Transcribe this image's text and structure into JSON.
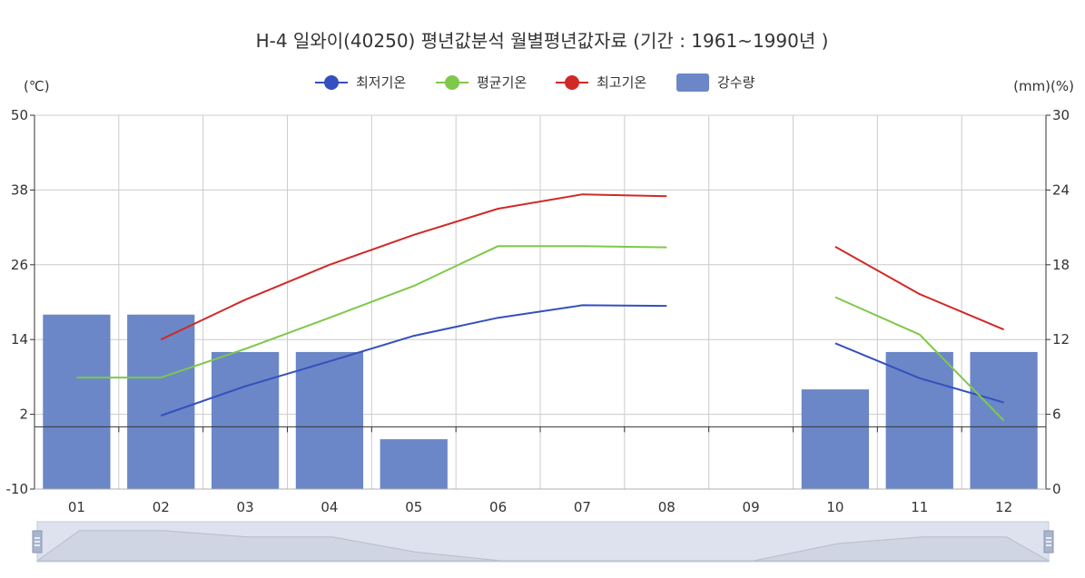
{
  "chart_data": {
    "type": "bar+line",
    "title": "H-4 일와이(40250) 평년값분석 월별평년값자료 (기간 : 1961~1990년 )",
    "left_unit": "(℃)",
    "right_unit": "(mm)(%)",
    "categories": [
      "01",
      "02",
      "03",
      "04",
      "05",
      "06",
      "07",
      "08",
      "09",
      "10",
      "11",
      "12"
    ],
    "left_axis": {
      "min": -10,
      "max": 50,
      "ticks": [
        -10,
        2,
        14,
        26,
        38,
        50
      ],
      "tick_labels": [
        "-10",
        "2",
        "14",
        "26",
        "38",
        "50"
      ]
    },
    "right_axis": {
      "min": 0,
      "max": 30,
      "ticks": [
        0,
        6,
        12,
        18,
        24,
        30
      ],
      "tick_labels": [
        "0",
        "6",
        "12",
        "18",
        "24",
        "30"
      ]
    },
    "grid": true,
    "legend_position": "top-center",
    "series": [
      {
        "name": "최저기온",
        "kind": "line",
        "axis": "left",
        "color": "#3450bf",
        "values": [
          null,
          1.8,
          6.5,
          10.5,
          14.6,
          17.5,
          19.5,
          19.4,
          null,
          13.4,
          7.8,
          3.9
        ]
      },
      {
        "name": "평균기온",
        "kind": "line",
        "axis": "left",
        "color": "#7ec84a",
        "values": [
          7.9,
          7.9,
          12.5,
          17.5,
          22.6,
          29.0,
          29.0,
          28.8,
          null,
          20.8,
          14.8,
          1.0
        ]
      },
      {
        "name": "최고기온",
        "kind": "line",
        "axis": "left",
        "color": "#cf2a27",
        "values": [
          null,
          14.0,
          20.4,
          26.0,
          30.8,
          35.0,
          37.3,
          37.0,
          null,
          28.9,
          21.3,
          15.6
        ]
      },
      {
        "name": "강수량",
        "kind": "bar",
        "axis": "right",
        "color": "#6b87c7",
        "values": [
          14,
          14,
          11,
          11,
          4,
          0,
          0,
          0,
          0,
          8,
          11,
          11
        ]
      }
    ]
  }
}
